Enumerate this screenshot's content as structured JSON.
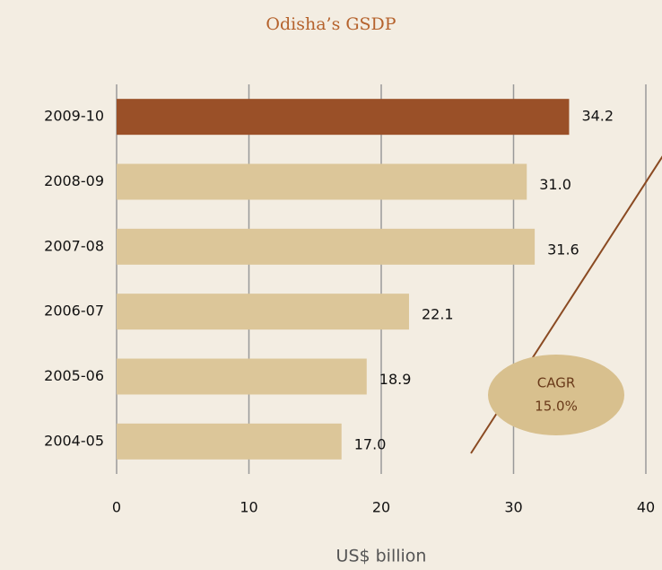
{
  "chart_data": {
    "type": "bar",
    "orientation": "horizontal",
    "title": "Odisha’s GSDP",
    "categories": [
      "2009-10",
      "2008-09",
      "2007-08",
      "2006-07",
      "2005-06",
      "2004-05"
    ],
    "values": [
      34.2,
      31.0,
      31.6,
      22.1,
      18.9,
      17.0
    ],
    "value_labels": [
      "34.2",
      "31.0",
      "31.6",
      "22.1",
      "18.9",
      "17.0"
    ],
    "colors": [
      "#9a5028",
      "#dcc699",
      "#dcc699",
      "#dcc699",
      "#dcc699",
      "#dcc699"
    ],
    "xlim": [
      0,
      40
    ],
    "xticks": [
      0,
      10,
      20,
      30,
      40
    ],
    "grid": true,
    "xlabel": "US$ billion",
    "annotations": [
      "CAGR",
      "15.0%"
    ]
  }
}
